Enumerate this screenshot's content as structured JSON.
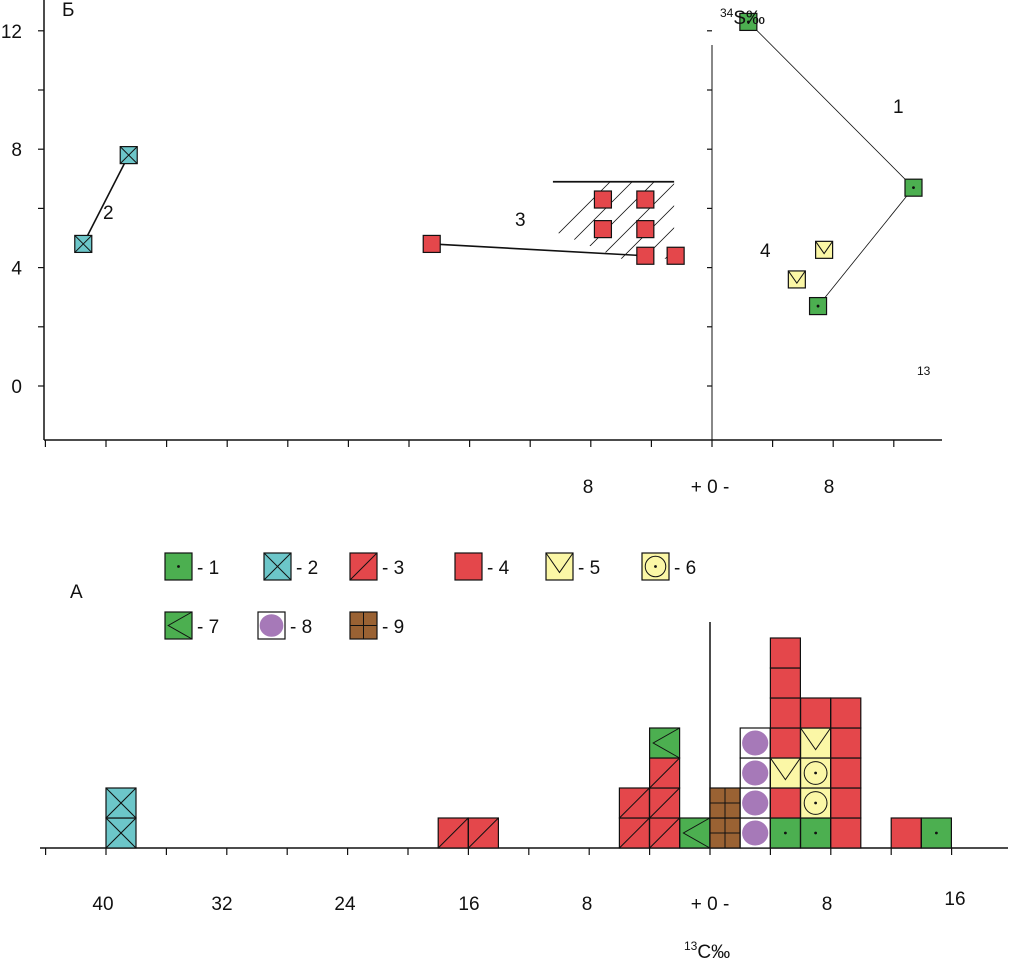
{
  "colors": {
    "green": "#4caf50",
    "cyan": "#6cc6c9",
    "red": "#e4474b",
    "yellow": "#fbf7a6",
    "purple": "#a679b8",
    "brown": "#9a6233",
    "axis": "#111111"
  },
  "chart_data": [
    {
      "id": "top",
      "type": "scatter",
      "panel_label": "Б",
      "y_axis_label": "34S‰",
      "y_axis_label_sup": "34",
      "y_axis_label_main": "S‰",
      "y_ticks": [
        12,
        8,
        4,
        0
      ],
      "ylim": [
        -2,
        13
      ],
      "x_tick_labels": [
        "8",
        "+ 0 -",
        "8"
      ],
      "note": "13",
      "group_labels": [
        "1",
        "2",
        "3",
        "4"
      ],
      "points": [
        {
          "group": "1",
          "x": 2.4,
          "y": 12.3,
          "symbol": "1"
        },
        {
          "group": "1",
          "x": 7.0,
          "y": 2.7,
          "symbol": "1"
        },
        {
          "group": "1",
          "x": 13.3,
          "y": 6.7,
          "symbol": "1"
        },
        {
          "group": "2",
          "x": -41.5,
          "y": 4.8,
          "symbol": "2"
        },
        {
          "group": "2",
          "x": -38.5,
          "y": 7.8,
          "symbol": "2"
        },
        {
          "group": "3",
          "x": -18.5,
          "y": 4.8,
          "symbol": "4"
        },
        {
          "group": "3",
          "x": -7.2,
          "y": 6.3,
          "symbol": "4"
        },
        {
          "group": "3",
          "x": -4.4,
          "y": 6.3,
          "symbol": "4"
        },
        {
          "group": "3",
          "x": -7.2,
          "y": 5.3,
          "symbol": "4"
        },
        {
          "group": "3",
          "x": -4.4,
          "y": 5.3,
          "symbol": "4"
        },
        {
          "group": "3",
          "x": -4.4,
          "y": 4.4,
          "symbol": "4"
        },
        {
          "group": "3",
          "x": -2.4,
          "y": 4.4,
          "symbol": "4"
        },
        {
          "group": "4",
          "x": 5.6,
          "y": 3.6,
          "symbol": "5"
        },
        {
          "group": "4",
          "x": 7.4,
          "y": 4.6,
          "symbol": "5"
        }
      ],
      "lines": [
        {
          "from": [
            -41.5,
            4.8
          ],
          "to": [
            -38.5,
            7.8
          ]
        },
        {
          "from": [
            -18.5,
            4.8
          ],
          "to": [
            -4.4,
            4.4
          ]
        },
        {
          "from": [
            2.4,
            12.3
          ],
          "to": [
            13.3,
            6.7
          ]
        },
        {
          "from": [
            13.3,
            6.7
          ],
          "to": [
            7.0,
            2.7
          ]
        }
      ]
    },
    {
      "id": "bottom",
      "type": "histogram",
      "panel_label": "А",
      "x_axis_label": "13C‰",
      "x_axis_label_sup": "13",
      "x_axis_label_main": "C‰",
      "x_tick_labels": [
        "40",
        "32",
        "24",
        "16",
        "8",
        "+ 0 -",
        "8",
        "16"
      ],
      "legend": [
        {
          "key": "1",
          "label": "- 1"
        },
        {
          "key": "2",
          "label": "- 2"
        },
        {
          "key": "3",
          "label": "- 3"
        },
        {
          "key": "4",
          "label": "- 4"
        },
        {
          "key": "5",
          "label": "- 5"
        },
        {
          "key": "6",
          "label": "- 6"
        },
        {
          "key": "7",
          "label": "- 7"
        },
        {
          "key": "8",
          "label": "- 8"
        },
        {
          "key": "9",
          "label": "- 9"
        }
      ],
      "columns": [
        {
          "x": -40,
          "cells": [
            "2",
            "2"
          ]
        },
        {
          "x": -18,
          "cells": [
            "3"
          ]
        },
        {
          "x": -16,
          "cells": [
            "3"
          ]
        },
        {
          "x": -6,
          "cells": [
            "3",
            "3"
          ]
        },
        {
          "x": -4,
          "cells": [
            "3",
            "3",
            "3",
            "7"
          ]
        },
        {
          "x": -2,
          "cells": [
            "7"
          ]
        },
        {
          "x": 0,
          "cells": [
            "9",
            "9"
          ]
        },
        {
          "x": 2,
          "cells": [
            "8",
            "8",
            "8",
            "8"
          ]
        },
        {
          "x": 4,
          "cells": [
            "1",
            "4",
            "5",
            "4",
            "4",
            "4",
            "4"
          ]
        },
        {
          "x": 6,
          "cells": [
            "1",
            "6",
            "6",
            "5",
            "4"
          ]
        },
        {
          "x": 8,
          "cells": [
            "4",
            "4",
            "4",
            "4",
            "4"
          ]
        },
        {
          "x": 12,
          "cells": [
            "4"
          ]
        },
        {
          "x": 14,
          "cells": [
            "1"
          ]
        }
      ]
    }
  ]
}
